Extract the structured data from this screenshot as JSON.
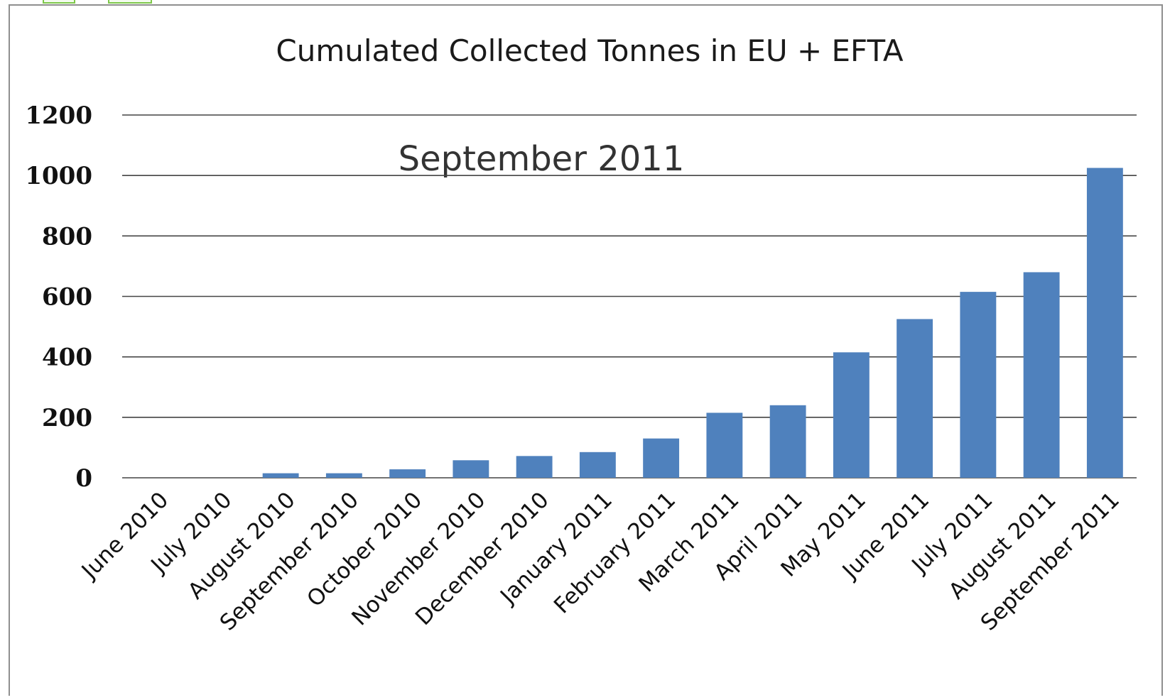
{
  "chart_data": {
    "type": "bar",
    "title": "Cumulated Collected Tonnes in EU + EFTA",
    "annotation": "September 2011",
    "xlabel": "",
    "ylabel": "",
    "ylim": [
      0,
      1200
    ],
    "yticks": [
      "0",
      "200",
      "400",
      "600",
      "800",
      "1000",
      "1200"
    ],
    "grid": true,
    "categories": [
      "June 2010",
      "July 2010",
      "August 2010",
      "September 2010",
      "October 2010",
      "November 2010",
      "December 2010",
      "January 2011",
      "February 2011",
      "March 2011",
      "April 2011",
      "May 2011",
      "June 2011",
      "July 2011",
      "August 2011",
      "September 2011"
    ],
    "values": [
      0,
      0,
      15,
      15,
      28,
      58,
      72,
      85,
      130,
      215,
      240,
      415,
      525,
      615,
      680,
      1025
    ],
    "colors": {
      "bar": "#4f81bd",
      "grid": "#444444"
    }
  }
}
